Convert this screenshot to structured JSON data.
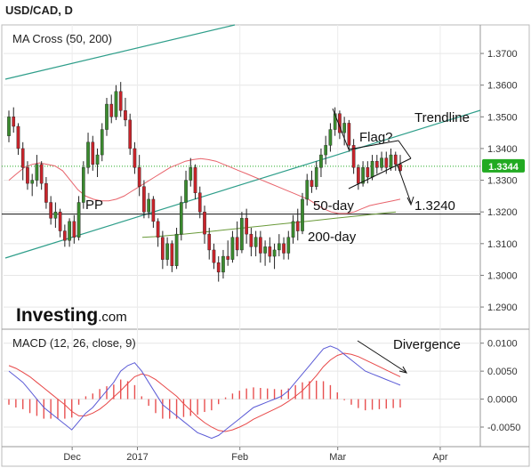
{
  "header": {
    "symbol_title": "USD/CAD, D"
  },
  "brand": {
    "logo_main": "Investing",
    "logo_suffix": ".com"
  },
  "colors": {
    "up": "#3a8a2e",
    "down": "#c8242b",
    "ma50": "#e8636b",
    "ma200": "#6a9a3a",
    "trendline": "#2e9e8a",
    "macd": "#5b5bd6",
    "signal": "#e84848",
    "hist": "#e85050",
    "price_badge": "#22aa22",
    "dotted_price": "#22aa22"
  },
  "chart_data": [
    {
      "type": "candlestick",
      "title": "MA Cross (50, 200)",
      "ylim": [
        1.283,
        1.379
      ],
      "yticks": [
        "1.3700",
        "1.3600",
        "1.3500",
        "1.3400",
        "1.3300",
        "1.3200",
        "1.3100",
        "1.3000",
        "1.2900"
      ],
      "ytick_values": [
        1.37,
        1.36,
        1.35,
        1.34,
        1.33,
        1.32,
        1.31,
        1.3,
        1.29
      ],
      "xticks": [
        "Dec",
        "2017",
        "Feb",
        "Mar",
        "Apr"
      ],
      "xtick_index": [
        9,
        23,
        45,
        66,
        88
      ],
      "current_price": "1.3344",
      "current_price_value": 1.3344,
      "pivot_level": 1.3193,
      "grid": true,
      "candles_ohlc": [
        [
          1.344,
          1.352,
          1.342,
          1.35
        ],
        [
          1.35,
          1.353,
          1.345,
          1.347
        ],
        [
          1.347,
          1.348,
          1.338,
          1.34
        ],
        [
          1.34,
          1.342,
          1.33,
          1.334
        ],
        [
          1.334,
          1.336,
          1.327,
          1.329
        ],
        [
          1.329,
          1.332,
          1.325,
          1.33
        ],
        [
          1.33,
          1.338,
          1.328,
          1.335
        ],
        [
          1.335,
          1.336,
          1.327,
          1.329
        ],
        [
          1.329,
          1.331,
          1.321,
          1.323
        ],
        [
          1.323,
          1.325,
          1.316,
          1.318
        ],
        [
          1.318,
          1.323,
          1.315,
          1.32
        ],
        [
          1.32,
          1.321,
          1.312,
          1.314
        ],
        [
          1.314,
          1.316,
          1.309,
          1.311
        ],
        [
          1.311,
          1.318,
          1.309,
          1.317
        ],
        [
          1.317,
          1.319,
          1.31,
          1.312
        ],
        [
          1.312,
          1.325,
          1.311,
          1.323
        ],
        [
          1.323,
          1.336,
          1.321,
          1.334
        ],
        [
          1.334,
          1.345,
          1.332,
          1.342
        ],
        [
          1.342,
          1.344,
          1.333,
          1.335
        ],
        [
          1.335,
          1.34,
          1.331,
          1.338
        ],
        [
          1.338,
          1.348,
          1.336,
          1.346
        ],
        [
          1.346,
          1.356,
          1.344,
          1.354
        ],
        [
          1.354,
          1.357,
          1.348,
          1.35
        ],
        [
          1.35,
          1.36,
          1.349,
          1.358
        ],
        [
          1.358,
          1.361,
          1.35,
          1.352
        ],
        [
          1.352,
          1.356,
          1.347,
          1.349
        ],
        [
          1.349,
          1.351,
          1.338,
          1.34
        ],
        [
          1.34,
          1.342,
          1.332,
          1.334
        ],
        [
          1.334,
          1.338,
          1.325,
          1.328
        ],
        [
          1.328,
          1.33,
          1.318,
          1.32
        ],
        [
          1.32,
          1.326,
          1.318,
          1.324
        ],
        [
          1.324,
          1.325,
          1.315,
          1.317
        ],
        [
          1.317,
          1.318,
          1.309,
          1.312
        ],
        [
          1.312,
          1.314,
          1.302,
          1.305
        ],
        [
          1.305,
          1.312,
          1.303,
          1.31
        ],
        [
          1.31,
          1.311,
          1.301,
          1.303
        ],
        [
          1.303,
          1.315,
          1.302,
          1.313
        ],
        [
          1.313,
          1.325,
          1.311,
          1.323
        ],
        [
          1.323,
          1.333,
          1.321,
          1.33
        ],
        [
          1.33,
          1.337,
          1.328,
          1.334
        ],
        [
          1.334,
          1.335,
          1.324,
          1.326
        ],
        [
          1.326,
          1.328,
          1.318,
          1.32
        ],
        [
          1.32,
          1.322,
          1.31,
          1.313
        ],
        [
          1.313,
          1.315,
          1.305,
          1.308
        ],
        [
          1.308,
          1.31,
          1.302,
          1.304
        ],
        [
          1.304,
          1.306,
          1.298,
          1.301
        ],
        [
          1.301,
          1.308,
          1.299,
          1.306
        ],
        [
          1.306,
          1.311,
          1.303,
          1.305
        ],
        [
          1.305,
          1.314,
          1.304,
          1.312
        ],
        [
          1.312,
          1.317,
          1.306,
          1.308
        ],
        [
          1.308,
          1.32,
          1.307,
          1.318
        ],
        [
          1.318,
          1.321,
          1.31,
          1.313
        ],
        [
          1.313,
          1.315,
          1.306,
          1.309
        ],
        [
          1.309,
          1.314,
          1.306,
          1.312
        ],
        [
          1.312,
          1.314,
          1.304,
          1.307
        ],
        [
          1.307,
          1.311,
          1.303,
          1.309
        ],
        [
          1.309,
          1.312,
          1.304,
          1.306
        ],
        [
          1.306,
          1.31,
          1.302,
          1.308
        ],
        [
          1.308,
          1.313,
          1.306,
          1.31
        ],
        [
          1.31,
          1.312,
          1.305,
          1.307
        ],
        [
          1.307,
          1.314,
          1.305,
          1.312
        ],
        [
          1.312,
          1.319,
          1.31,
          1.317
        ],
        [
          1.317,
          1.321,
          1.311,
          1.314
        ],
        [
          1.314,
          1.326,
          1.313,
          1.324
        ],
        [
          1.324,
          1.332,
          1.322,
          1.33
        ],
        [
          1.33,
          1.333,
          1.326,
          1.328
        ],
        [
          1.328,
          1.336,
          1.327,
          1.334
        ],
        [
          1.334,
          1.34,
          1.331,
          1.338
        ],
        [
          1.338,
          1.344,
          1.335,
          1.341
        ],
        [
          1.341,
          1.348,
          1.339,
          1.346
        ],
        [
          1.346,
          1.353,
          1.344,
          1.351
        ],
        [
          1.351,
          1.352,
          1.343,
          1.345
        ],
        [
          1.345,
          1.35,
          1.341,
          1.348
        ],
        [
          1.348,
          1.349,
          1.339,
          1.341
        ],
        [
          1.341,
          1.343,
          1.332,
          1.334
        ],
        [
          1.334,
          1.335,
          1.327,
          1.329
        ],
        [
          1.329,
          1.336,
          1.328,
          1.334
        ],
        [
          1.334,
          1.336,
          1.329,
          1.331
        ],
        [
          1.331,
          1.338,
          1.33,
          1.336
        ],
        [
          1.336,
          1.338,
          1.332,
          1.334
        ],
        [
          1.334,
          1.339,
          1.333,
          1.337
        ],
        [
          1.337,
          1.339,
          1.332,
          1.334
        ],
        [
          1.334,
          1.34,
          1.333,
          1.338
        ],
        [
          1.338,
          1.339,
          1.333,
          1.335
        ],
        [
          1.335,
          1.338,
          1.332,
          1.333
        ]
      ],
      "ma50": [
        1.33,
        1.332,
        1.334,
        1.335,
        1.3355,
        1.335,
        1.3345,
        1.333,
        1.33,
        1.327,
        1.325,
        1.324,
        1.3235,
        1.3235,
        1.324,
        1.325,
        1.3265,
        1.328,
        1.3295,
        1.331,
        1.3325,
        1.334,
        1.335,
        1.336,
        1.3365,
        1.3368,
        1.3365,
        1.336,
        1.335,
        1.334,
        1.333,
        1.332,
        1.331,
        1.33,
        1.329,
        1.328,
        1.327,
        1.326,
        1.325,
        1.324,
        1.3225,
        1.321,
        1.32,
        1.3195,
        1.3195,
        1.32,
        1.321,
        1.322,
        1.3225,
        1.323,
        1.3235,
        1.324
      ],
      "ma50_start_index": 0,
      "ma200": [
        1.312,
        1.3122,
        1.3125,
        1.3128,
        1.3132,
        1.3136,
        1.314,
        1.3144,
        1.3148,
        1.3152,
        1.3156,
        1.316,
        1.3164,
        1.3168,
        1.3172,
        1.3176,
        1.318,
        1.3184,
        1.3188,
        1.3192,
        1.3196,
        1.32
      ],
      "ma200_start_index": 27,
      "annotations": {
        "pp_label": "PP",
        "flag_label": "Flag?",
        "trendline_label": "Trendline",
        "ma50_label": "50-day",
        "ma200_label": "200-day",
        "target_label": "1.3240",
        "target_value": 1.324
      }
    },
    {
      "type": "line",
      "title": "MACD (12, 26, close, 9)",
      "ylim": [
        -0.0085,
        0.0125
      ],
      "yticks": [
        "0.0100",
        "0.0050",
        "0.0000",
        "-0.0050"
      ],
      "ytick_values": [
        0.01,
        0.005,
        0.0,
        -0.005
      ],
      "annotation": "Divergence",
      "macd": [
        0.005,
        0.004,
        0.003,
        0.0015,
        0.0,
        -0.0015,
        -0.0025,
        -0.0035,
        -0.0045,
        -0.0055,
        -0.004,
        -0.0025,
        -0.0015,
        0.0,
        0.0015,
        0.003,
        0.005,
        0.006,
        0.0065,
        0.005,
        0.003,
        0.001,
        -0.001,
        -0.002,
        -0.003,
        -0.004,
        -0.005,
        -0.006,
        -0.0065,
        -0.007,
        -0.0065,
        -0.0055,
        -0.0045,
        -0.0035,
        -0.0025,
        -0.0015,
        -0.001,
        -0.0005,
        0.0,
        0.0005,
        0.0015,
        0.003,
        0.0045,
        0.006,
        0.0075,
        0.009,
        0.0095,
        0.009,
        0.008,
        0.007,
        0.006,
        0.005,
        0.0045,
        0.004,
        0.0035,
        0.003,
        0.0025
      ],
      "signal": [
        0.006,
        0.0055,
        0.0048,
        0.004,
        0.003,
        0.002,
        0.001,
        0.0,
        -0.001,
        -0.0022,
        -0.003,
        -0.003,
        -0.0025,
        -0.0018,
        -0.0008,
        0.0004,
        0.0015,
        0.0028,
        0.004,
        0.0045,
        0.0042,
        0.0035,
        0.0025,
        0.0015,
        0.0005,
        -0.0008,
        -0.002,
        -0.0032,
        -0.0042,
        -0.005,
        -0.0056,
        -0.0058,
        -0.0055,
        -0.005,
        -0.0044,
        -0.0036,
        -0.003,
        -0.0024,
        -0.0018,
        -0.0012,
        -0.0004,
        0.0005,
        0.0015,
        0.0028,
        0.0042,
        0.0058,
        0.007,
        0.0078,
        0.0082,
        0.008,
        0.0076,
        0.007,
        0.0064,
        0.0058,
        0.0052,
        0.0046,
        0.004
      ],
      "histogram": [
        -0.001,
        -0.0015,
        -0.0018,
        -0.0025,
        -0.003,
        -0.0035,
        -0.0035,
        -0.0035,
        -0.0035,
        -0.0033,
        -0.001,
        0.0005,
        0.001,
        0.0018,
        0.0023,
        0.0026,
        0.0035,
        0.0032,
        0.0025,
        0.0005,
        -0.0012,
        -0.0025,
        -0.0035,
        -0.0035,
        -0.0035,
        -0.0032,
        -0.003,
        -0.0028,
        -0.0023,
        -0.002,
        -0.0009,
        0.0003,
        0.001,
        0.0015,
        0.0019,
        0.0021,
        0.002,
        0.0019,
        0.0018,
        0.0017,
        0.0019,
        0.0025,
        0.003,
        0.0032,
        0.0033,
        0.0032,
        0.0025,
        0.0012,
        -0.0002,
        -0.001,
        -0.0016,
        -0.002,
        -0.0019,
        -0.0018,
        -0.0017,
        -0.0016,
        -0.0015
      ]
    }
  ]
}
